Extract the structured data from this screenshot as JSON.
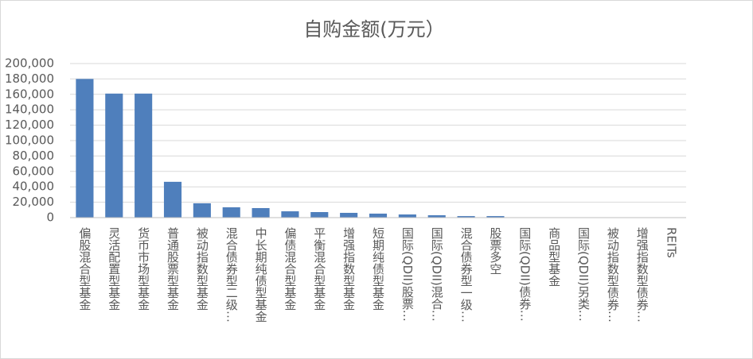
{
  "chart_data": {
    "type": "bar",
    "title": "自购金额(万元）",
    "categories": [
      "偏股混合型基金",
      "灵活配置型基金",
      "货币市场型基金",
      "普通股票型基金",
      "被动指数型基金",
      "混合债券型二级…",
      "中长期纯债型基金",
      "偏债混合型基金",
      "平衡混合型基金",
      "增强指数型基金",
      "短期纯债型基金",
      "国际(QDII)股票…",
      "国际(QDII)混合…",
      "混合债券型一级…",
      "股票多空",
      "国际(QDII)债券…",
      "商品型基金",
      "国际(QDII)另类…",
      "被动指数型债券…",
      "增强指数型债券…",
      "REITs"
    ],
    "values": [
      180000,
      161000,
      161000,
      46500,
      18600,
      13400,
      12400,
      8200,
      7200,
      6200,
      5200,
      4100,
      3100,
      2000,
      2000,
      200,
      100,
      0,
      0,
      0,
      0
    ],
    "color": "#4f7fbc",
    "ylim": [
      0,
      200000
    ],
    "yticks": [
      {
        "value": 0,
        "label": "0"
      },
      {
        "value": 20000,
        "label": "20,000"
      },
      {
        "value": 40000,
        "label": "40,000"
      },
      {
        "value": 60000,
        "label": "60,000"
      },
      {
        "value": 80000,
        "label": "80,000"
      },
      {
        "value": 100000,
        "label": "100,000"
      },
      {
        "value": 120000,
        "label": "120,000"
      },
      {
        "value": 140000,
        "label": "140,000"
      },
      {
        "value": 160000,
        "label": "160,000"
      },
      {
        "value": 180000,
        "label": "180,000"
      },
      {
        "value": 200000,
        "label": "200,000"
      }
    ],
    "grid": true
  }
}
